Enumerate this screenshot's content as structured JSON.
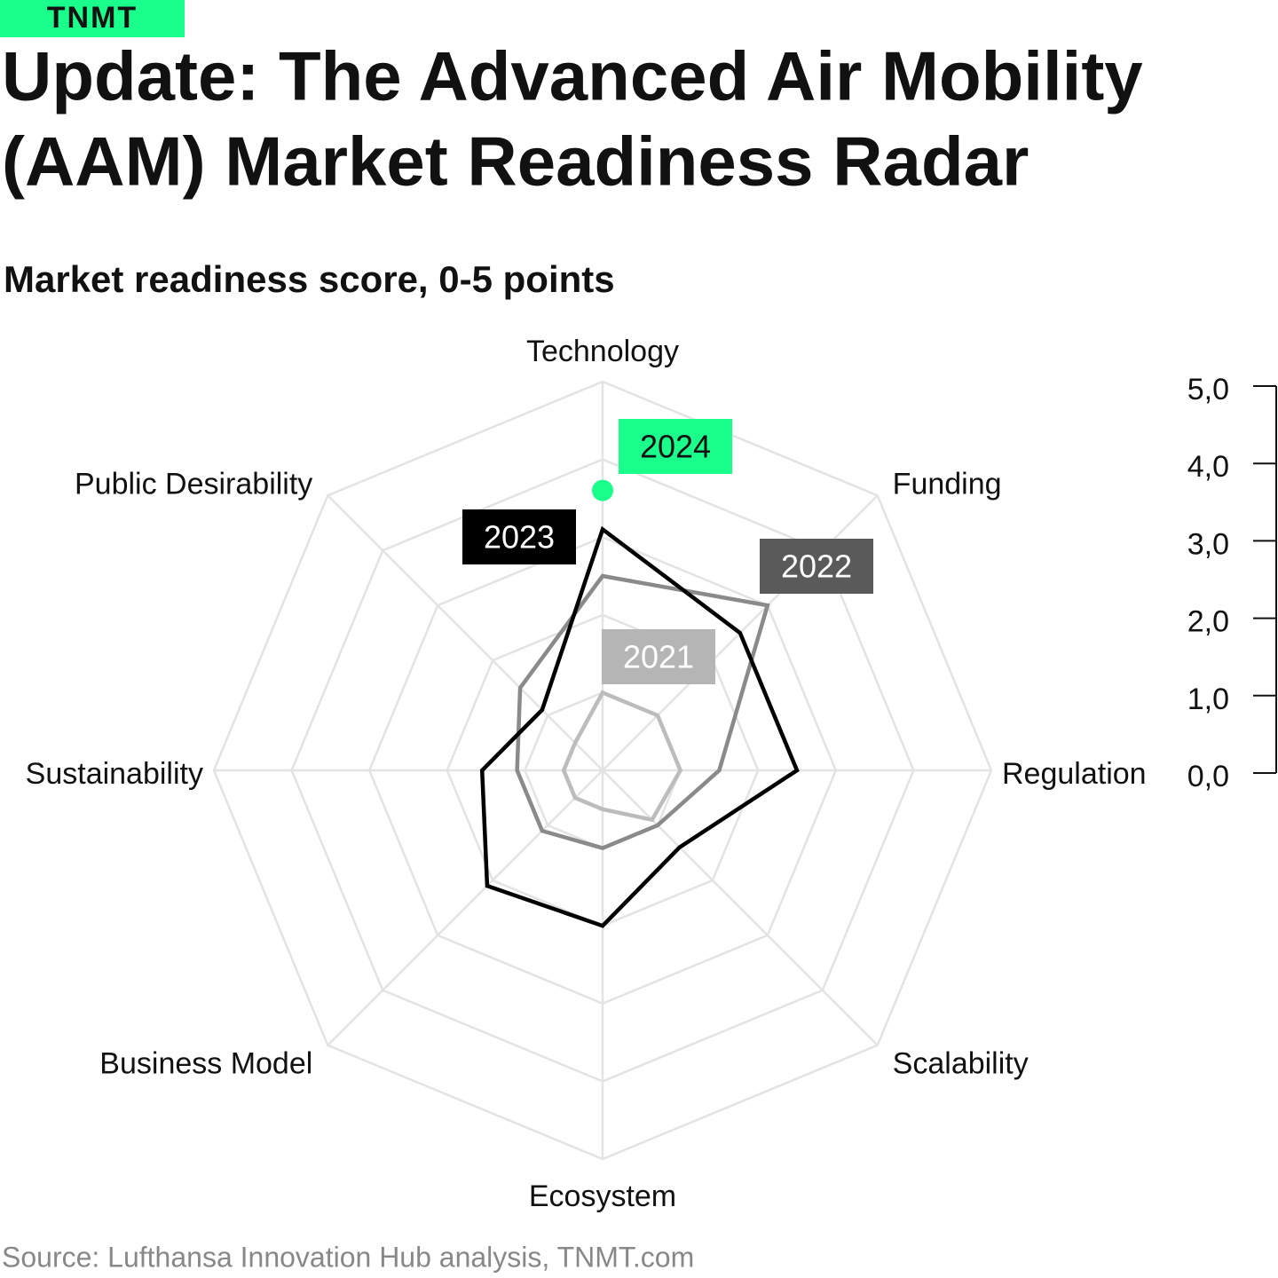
{
  "brand": "TNMT",
  "source": "Source: Lufthansa Innovation Hub analysis, TNMT.com",
  "chart_data": {
    "type": "radar",
    "title": [
      "Update: The Advanced Air Mobility",
      "(AAM) Market Readiness Radar"
    ],
    "subtitle": "Market readiness score, 0-5 points",
    "categories": [
      "Technology",
      "Funding",
      "Regulation",
      "Scalability",
      "Ecosystem",
      "Business Model",
      "Sustainability",
      "Public Desirability"
    ],
    "ylim": [
      0,
      5
    ],
    "yticks": [
      {
        "value": 0,
        "label": "0,0"
      },
      {
        "value": 1,
        "label": "1,0"
      },
      {
        "value": 2,
        "label": "2,0"
      },
      {
        "value": 3,
        "label": "3,0"
      },
      {
        "value": 4,
        "label": "4,0"
      },
      {
        "value": 5,
        "label": "5,0"
      }
    ],
    "grid": true,
    "series": [
      {
        "name": "2021",
        "color": "#bcbcbc",
        "values": [
          1.0,
          1.0,
          1.0,
          0.9,
          0.5,
          0.5,
          0.5,
          0.5
        ]
      },
      {
        "name": "2022",
        "color": "#8a8a8a",
        "values": [
          2.5,
          3.0,
          1.5,
          1.0,
          1.0,
          1.1,
          1.1,
          1.5
        ]
      },
      {
        "name": "2023",
        "color": "#000000",
        "values": [
          3.1,
          2.5,
          2.5,
          1.4,
          2.0,
          2.1,
          1.55,
          1.1
        ]
      },
      {
        "name": "2024",
        "color": "#1aff8c",
        "values": [
          3.6,
          null,
          null,
          null,
          null,
          null,
          null,
          null
        ]
      }
    ]
  }
}
